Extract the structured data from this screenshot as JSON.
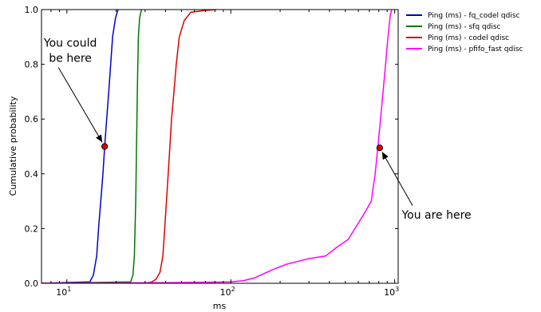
{
  "chart_data": {
    "type": "line",
    "title": "",
    "xlabel": "ms",
    "ylabel": "Cumulative probability",
    "x_scale": "log",
    "xlim": [
      7,
      1050
    ],
    "ylim": [
      0,
      1
    ],
    "x_ticks": [
      {
        "value": 10,
        "base": "10",
        "exp": "1"
      },
      {
        "value": 100,
        "base": "10",
        "exp": "2"
      },
      {
        "value": 1000,
        "base": "10",
        "exp": "3"
      }
    ],
    "y_ticks": [
      "0.0",
      "0.2",
      "0.4",
      "0.6",
      "0.8",
      "1.0"
    ],
    "grid": false,
    "legend_position": "outside right, top",
    "series": [
      {
        "name": "Ping (ms) - fq_codel qdisc",
        "color": "#0000cc",
        "points": [
          [
            7,
            0.0
          ],
          [
            13.8,
            0.005
          ],
          [
            14.5,
            0.03
          ],
          [
            15.2,
            0.1
          ],
          [
            15.6,
            0.2
          ],
          [
            16.1,
            0.3
          ],
          [
            16.6,
            0.4
          ],
          [
            17.0,
            0.5
          ],
          [
            17.5,
            0.6
          ],
          [
            18.0,
            0.7
          ],
          [
            18.5,
            0.8
          ],
          [
            19.0,
            0.9
          ],
          [
            19.8,
            0.97
          ],
          [
            20.5,
            1.0
          ]
        ]
      },
      {
        "name": "Ping (ms) - sfq qdisc",
        "color": "#007700",
        "points": [
          [
            7,
            0.0
          ],
          [
            24.5,
            0.005
          ],
          [
            25.3,
            0.03
          ],
          [
            25.8,
            0.1
          ],
          [
            26.3,
            0.3
          ],
          [
            26.6,
            0.5
          ],
          [
            26.9,
            0.7
          ],
          [
            27.3,
            0.9
          ],
          [
            27.8,
            0.97
          ],
          [
            28.5,
            1.0
          ]
        ]
      },
      {
        "name": "Ping (ms) - codel qdisc",
        "color": "#dd0000",
        "points": [
          [
            7,
            0.0
          ],
          [
            30,
            0.0
          ],
          [
            33,
            0.005
          ],
          [
            35,
            0.015
          ],
          [
            37,
            0.04
          ],
          [
            38.5,
            0.1
          ],
          [
            39.5,
            0.2
          ],
          [
            40.5,
            0.3
          ],
          [
            41.5,
            0.4
          ],
          [
            42.5,
            0.5
          ],
          [
            43.5,
            0.6
          ],
          [
            45,
            0.7
          ],
          [
            46.5,
            0.8
          ],
          [
            48.5,
            0.9
          ],
          [
            52,
            0.96
          ],
          [
            57,
            0.99
          ],
          [
            70,
            0.997
          ],
          [
            82,
            1.0
          ]
        ]
      },
      {
        "name": "Ping (ms) - pfifo_fast qdisc",
        "color": "#ff00ff",
        "points": [
          [
            7,
            0.0
          ],
          [
            40,
            0.002
          ],
          [
            100,
            0.005
          ],
          [
            120,
            0.01
          ],
          [
            140,
            0.02
          ],
          [
            180,
            0.05
          ],
          [
            220,
            0.07
          ],
          [
            300,
            0.09
          ],
          [
            380,
            0.1
          ],
          [
            440,
            0.13
          ],
          [
            520,
            0.16
          ],
          [
            600,
            0.22
          ],
          [
            660,
            0.26
          ],
          [
            720,
            0.3
          ],
          [
            760,
            0.4
          ],
          [
            790,
            0.5
          ],
          [
            820,
            0.6
          ],
          [
            850,
            0.7
          ],
          [
            880,
            0.8
          ],
          [
            910,
            0.9
          ],
          [
            940,
            0.98
          ],
          [
            960,
            1.0
          ]
        ]
      }
    ],
    "annotations": [
      {
        "lines": [
          "You could",
          "be here"
        ],
        "point": [
          17,
          0.5
        ],
        "text_at": [
          10.5,
          0.85
        ],
        "marker_color": "#dd0000"
      },
      {
        "lines": [
          "You are here"
        ],
        "point": [
          810,
          0.495
        ],
        "text_at": [
          1800,
          0.25
        ],
        "marker_color": "#dd0000"
      }
    ]
  }
}
